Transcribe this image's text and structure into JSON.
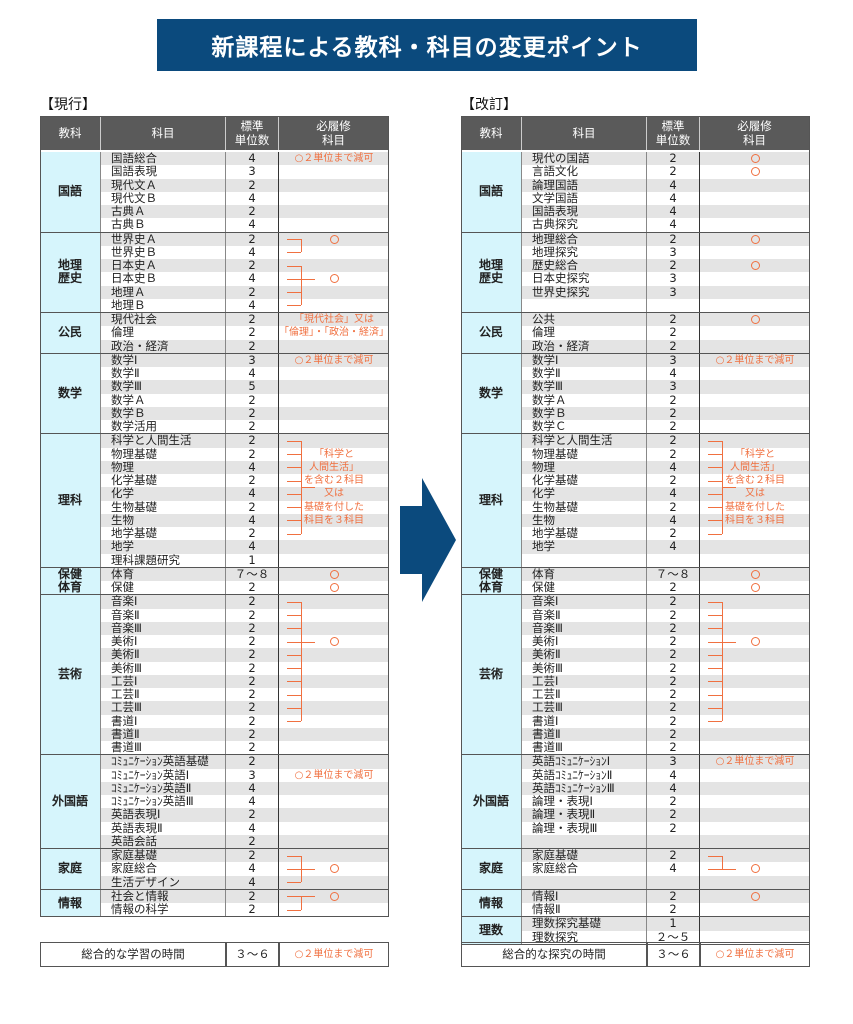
{
  "title": "新課程による教科・科目の変更ポイント",
  "colors": {
    "banner": "#0b4a7d",
    "header": "#5a5a5a",
    "group": "#d6f5fc",
    "note": "#f07040"
  },
  "headers": [
    "教科",
    "科目",
    "標準\n単位数",
    "必履修\n科目"
  ],
  "current": {
    "label": "【現行】",
    "groups": [
      {
        "name": "国語",
        "rows": [
          [
            "国語総合",
            "4"
          ],
          [
            "国語表現",
            "3"
          ],
          [
            "現代文Ａ",
            "2"
          ],
          [
            "現代文Ｂ",
            "4"
          ],
          [
            "古典Ａ",
            "2"
          ],
          [
            "古典Ｂ",
            "4"
          ]
        ],
        "notes": [
          {
            "row": 0,
            "text": "○２単位まで減可"
          }
        ]
      },
      {
        "name": "地理\n歴史",
        "rows": [
          [
            "世界史Ａ",
            "2"
          ],
          [
            "世界史Ｂ",
            "4"
          ],
          [
            "日本史Ａ",
            "2"
          ],
          [
            "日本史Ｂ",
            "4"
          ],
          [
            "地理Ａ",
            "2"
          ],
          [
            "地理Ｂ",
            "4"
          ]
        ],
        "circles": [
          0,
          3
        ],
        "brackets": [
          [
            0,
            1
          ],
          [
            2,
            5
          ]
        ]
      },
      {
        "name": "公民",
        "rows": [
          [
            "現代社会",
            "2"
          ],
          [
            "倫理",
            "2"
          ],
          [
            "政治・経済",
            "2"
          ]
        ],
        "notes": [
          {
            "row": 0,
            "text": "「現代社会」又は"
          },
          {
            "row": 1,
            "text": "「倫理」・「政治・経済」"
          }
        ]
      },
      {
        "name": "数学",
        "rows": [
          [
            "数学Ⅰ",
            "3"
          ],
          [
            "数学Ⅱ",
            "4"
          ],
          [
            "数学Ⅲ",
            "5"
          ],
          [
            "数学Ａ",
            "2"
          ],
          [
            "数学Ｂ",
            "2"
          ],
          [
            "数学活用",
            "2"
          ]
        ],
        "notes": [
          {
            "row": 0,
            "text": "○２単位まで減可"
          }
        ]
      },
      {
        "name": "理科",
        "rows": [
          [
            "科学と人間生活",
            "2"
          ],
          [
            "物理基礎",
            "2"
          ],
          [
            "物理",
            "4"
          ],
          [
            "化学基礎",
            "2"
          ],
          [
            "化学",
            "4"
          ],
          [
            "生物基礎",
            "2"
          ],
          [
            "生物",
            "4"
          ],
          [
            "地学基礎",
            "2"
          ],
          [
            "地学",
            "4"
          ],
          [
            "理科課題研究",
            "1"
          ]
        ],
        "notes": [
          {
            "row": 1,
            "text": "「科学と"
          },
          {
            "row": 2,
            "text": "人間生活」"
          },
          {
            "row": 3,
            "text": "を含む２科目"
          },
          {
            "row": 4,
            "text": "又は"
          },
          {
            "row": 5,
            "text": "基礎を付した"
          },
          {
            "row": 6,
            "text": "科目を３科目"
          }
        ],
        "brackets": [
          [
            0,
            7
          ]
        ]
      },
      {
        "name": "保健\n体育",
        "rows": [
          [
            "体育",
            "７～８"
          ],
          [
            "保健",
            "2"
          ]
        ],
        "circles": [
          0,
          1
        ]
      },
      {
        "name": "芸術",
        "rows": [
          [
            "音楽Ⅰ",
            "2"
          ],
          [
            "音楽Ⅱ",
            "2"
          ],
          [
            "音楽Ⅲ",
            "2"
          ],
          [
            "美術Ⅰ",
            "2"
          ],
          [
            "美術Ⅱ",
            "2"
          ],
          [
            "美術Ⅲ",
            "2"
          ],
          [
            "工芸Ⅰ",
            "2"
          ],
          [
            "工芸Ⅱ",
            "2"
          ],
          [
            "工芸Ⅲ",
            "2"
          ],
          [
            "書道Ⅰ",
            "2"
          ],
          [
            "書道Ⅱ",
            "2"
          ],
          [
            "書道Ⅲ",
            "2"
          ]
        ],
        "circles": [
          3
        ],
        "brackets": [
          [
            0,
            9
          ]
        ]
      },
      {
        "name": "外国語",
        "rows": [
          [
            "ｺﾐｭﾆｹｰｼｮﾝ英語基礎",
            "2"
          ],
          [
            "ｺﾐｭﾆｹｰｼｮﾝ英語Ⅰ",
            "3"
          ],
          [
            "ｺﾐｭﾆｹｰｼｮﾝ英語Ⅱ",
            "4"
          ],
          [
            "ｺﾐｭﾆｹｰｼｮﾝ英語Ⅲ",
            "4"
          ],
          [
            "英語表現Ⅰ",
            "2"
          ],
          [
            "英語表現Ⅱ",
            "4"
          ],
          [
            "英語会話",
            "2"
          ]
        ],
        "notes": [
          {
            "row": 1,
            "text": "○２単位まで減可"
          }
        ]
      },
      {
        "name": "家庭",
        "rows": [
          [
            "家庭基礎",
            "2"
          ],
          [
            "家庭総合",
            "4"
          ],
          [
            "生活デザイン",
            "4"
          ]
        ],
        "circles": [
          1
        ],
        "brackets": [
          [
            0,
            2
          ]
        ]
      },
      {
        "name": "情報",
        "rows": [
          [
            "社会と情報",
            "2"
          ],
          [
            "情報の科学",
            "2"
          ]
        ],
        "circles": [
          0
        ],
        "brackets": [
          [
            0,
            1
          ]
        ]
      }
    ],
    "total": {
      "name": "総合的な学習の時間",
      "units": "３～６",
      "note": "○２単位まで減可"
    }
  },
  "revised": {
    "label": "【改訂】",
    "groups": [
      {
        "name": "国語",
        "rows": [
          [
            "現代の国語",
            "2"
          ],
          [
            "言語文化",
            "2"
          ],
          [
            "論理国語",
            "4"
          ],
          [
            "文学国語",
            "4"
          ],
          [
            "国語表現",
            "4"
          ],
          [
            "古典探究",
            "4"
          ]
        ],
        "circles": [
          0,
          1
        ]
      },
      {
        "name": "地理\n歴史",
        "rows": [
          [
            "地理総合",
            "2"
          ],
          [
            "地理探究",
            "3"
          ],
          [
            "歴史総合",
            "2"
          ],
          [
            "日本史探究",
            "3"
          ],
          [
            "世界史探究",
            "3"
          ],
          [
            "",
            ""
          ]
        ],
        "circles": [
          0,
          2
        ]
      },
      {
        "name": "公民",
        "rows": [
          [
            "公共",
            "2"
          ],
          [
            "倫理",
            "2"
          ],
          [
            "政治・経済",
            "2"
          ]
        ],
        "circles": [
          0
        ]
      },
      {
        "name": "数学",
        "rows": [
          [
            "数学Ⅰ",
            "3"
          ],
          [
            "数学Ⅱ",
            "4"
          ],
          [
            "数学Ⅲ",
            "3"
          ],
          [
            "数学Ａ",
            "2"
          ],
          [
            "数学Ｂ",
            "2"
          ],
          [
            "数学Ｃ",
            "2"
          ]
        ],
        "notes": [
          {
            "row": 0,
            "text": "○２単位まで減可"
          }
        ]
      },
      {
        "name": "理科",
        "rows": [
          [
            "科学と人間生活",
            "2"
          ],
          [
            "物理基礎",
            "2"
          ],
          [
            "物理",
            "4"
          ],
          [
            "化学基礎",
            "2"
          ],
          [
            "化学",
            "4"
          ],
          [
            "生物基礎",
            "2"
          ],
          [
            "生物",
            "4"
          ],
          [
            "地学基礎",
            "2"
          ],
          [
            "地学",
            "4"
          ],
          [
            "",
            ""
          ]
        ],
        "notes": [
          {
            "row": 1,
            "text": "「科学と"
          },
          {
            "row": 2,
            "text": "人間生活」"
          },
          {
            "row": 3,
            "text": "を含む２科目"
          },
          {
            "row": 4,
            "text": "又は"
          },
          {
            "row": 5,
            "text": "基礎を付した"
          },
          {
            "row": 6,
            "text": "科目を３科目"
          }
        ],
        "brackets": [
          [
            0,
            7
          ]
        ]
      },
      {
        "name": "保健\n体育",
        "rows": [
          [
            "体育",
            "７～８"
          ],
          [
            "保健",
            "2"
          ]
        ],
        "circles": [
          0,
          1
        ]
      },
      {
        "name": "芸術",
        "rows": [
          [
            "音楽Ⅰ",
            "2"
          ],
          [
            "音楽Ⅱ",
            "2"
          ],
          [
            "音楽Ⅲ",
            "2"
          ],
          [
            "美術Ⅰ",
            "2"
          ],
          [
            "美術Ⅱ",
            "2"
          ],
          [
            "美術Ⅲ",
            "2"
          ],
          [
            "工芸Ⅰ",
            "2"
          ],
          [
            "工芸Ⅱ",
            "2"
          ],
          [
            "工芸Ⅲ",
            "2"
          ],
          [
            "書道Ⅰ",
            "2"
          ],
          [
            "書道Ⅱ",
            "2"
          ],
          [
            "書道Ⅲ",
            "2"
          ]
        ],
        "circles": [
          3
        ],
        "brackets": [
          [
            0,
            9
          ]
        ]
      },
      {
        "name": "外国語",
        "rows": [
          [
            "英語ｺﾐｭﾆｹｰｼｮﾝⅠ",
            "3"
          ],
          [
            "英語ｺﾐｭﾆｹｰｼｮﾝⅡ",
            "4"
          ],
          [
            "英語ｺﾐｭﾆｹｰｼｮﾝⅢ",
            "4"
          ],
          [
            "論理・表現Ⅰ",
            "2"
          ],
          [
            "論理・表現Ⅱ",
            "2"
          ],
          [
            "論理・表現Ⅲ",
            "2"
          ],
          [
            "",
            ""
          ]
        ],
        "notes": [
          {
            "row": 0,
            "text": "○２単位まで減可"
          }
        ]
      },
      {
        "name": "家庭",
        "rows": [
          [
            "家庭基礎",
            "2"
          ],
          [
            "家庭総合",
            "4"
          ],
          [
            "",
            ""
          ]
        ],
        "circles": [
          1
        ],
        "brackets": [
          [
            0,
            1
          ]
        ]
      },
      {
        "name": "情報",
        "rows": [
          [
            "情報Ⅰ",
            "2"
          ],
          [
            "情報Ⅱ",
            "2"
          ]
        ],
        "circles": [
          0
        ]
      },
      {
        "name": "理数",
        "rows": [
          [
            "理数探究基礎",
            "1"
          ],
          [
            "理数探究",
            "２～５"
          ]
        ]
      }
    ],
    "total": {
      "name": "総合的な探究の時間",
      "units": "３～６",
      "note": "○２単位まで減可"
    }
  }
}
